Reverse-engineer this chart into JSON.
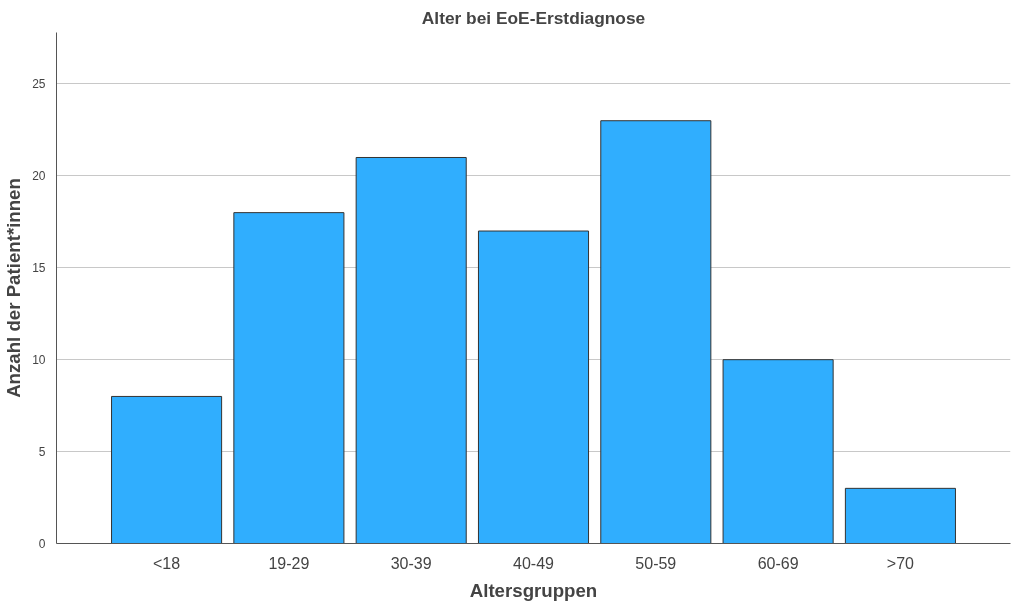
{
  "chart_data": {
    "type": "bar",
    "title": "Alter bei EoE-Erstdiagnose",
    "xlabel": "Altersgruppen",
    "ylabel": "Anzahl der Patient*innen",
    "categories": [
      "<18",
      "19-29",
      "30-39",
      "40-49",
      "50-59",
      "60-69",
      ">70"
    ],
    "values": [
      8,
      18,
      21,
      17,
      23,
      10,
      3
    ],
    "color": "#30aefe",
    "ylim": [
      0,
      27.8
    ],
    "yticks": [
      0,
      5,
      10,
      15,
      20,
      25
    ],
    "grid": "y"
  }
}
